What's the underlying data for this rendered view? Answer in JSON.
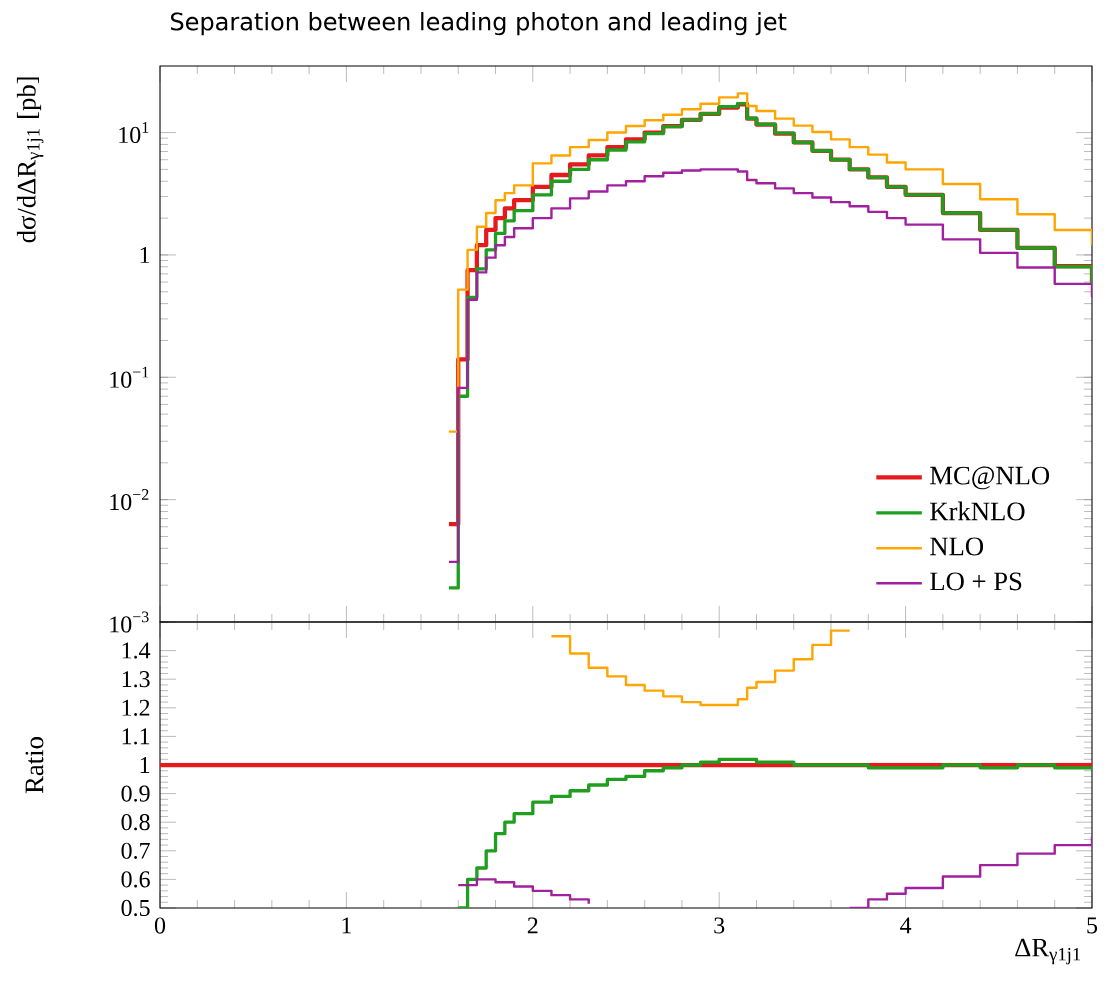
{
  "chart_data": [
    {
      "type": "step",
      "title": "Separation between leading photon and leading jet",
      "ylabel": "dσ/dΔR$_{γ1j1}$ [pb]",
      "log": "y",
      "legend": "bottom right",
      "tick_labels": "y",
      "line_style": "solid",
      "x": [
        1.55,
        1.6,
        1.65,
        1.7,
        1.75,
        1.8,
        1.85,
        1.9,
        2.0,
        2.1,
        2.2,
        2.3,
        2.4,
        2.5,
        2.6,
        2.7,
        2.8,
        2.9,
        3.0,
        3.1,
        3.15,
        3.2,
        3.3,
        3.4,
        3.5,
        3.6,
        3.7,
        3.8,
        3.9,
        4.0,
        4.2,
        4.4,
        4.6,
        4.8,
        5.0
      ],
      "xlim": [
        0,
        5
      ],
      "xticks": [
        0,
        1,
        2,
        3,
        4,
        5
      ],
      "ylim": [
        0.001,
        35
      ],
      "yticks": [
        {
          "value": 0.001,
          "label": "10$^{−3}$"
        },
        {
          "value": 0.01,
          "label": "10$^{−2}$"
        },
        {
          "value": 0.1,
          "label": "10$^{−1}$"
        },
        1,
        {
          "value": 10,
          "label": "10$^{1}$"
        }
      ],
      "series": [
        {
          "name": "MC@NLO",
          "color": "#e41a1c",
          "values": [
            0.0063,
            0.14,
            0.75,
            1.2,
            1.6,
            2.0,
            2.4,
            2.8,
            3.6,
            4.5,
            5.5,
            6.5,
            7.6,
            8.8,
            10,
            11.3,
            12.7,
            14.2,
            16,
            17,
            13,
            11.6,
            9.8,
            8.3,
            7.1,
            6.0,
            5.0,
            4.3,
            3.6,
            3.1,
            2.2,
            1.6,
            1.14,
            0.81,
            0.6
          ]
        },
        {
          "name": "KrkNLO",
          "color": "#1f9e1f",
          "values": [
            0.0019,
            0.07,
            0.45,
            0.77,
            1.1,
            1.5,
            1.9,
            2.3,
            3.1,
            4.0,
            5.0,
            6.0,
            7.2,
            8.4,
            9.8,
            11.2,
            12.7,
            14.3,
            16.3,
            17.3,
            13.1,
            11.7,
            9.9,
            8.3,
            7.1,
            6.0,
            5.0,
            4.3,
            3.6,
            3.1,
            2.2,
            1.6,
            1.14,
            0.8,
            0.59
          ]
        },
        {
          "name": "NLO",
          "color": "#ffa500",
          "values": [
            0.036,
            0.52,
            1.1,
            1.7,
            2.2,
            2.8,
            3.2,
            3.7,
            5.6,
            6.5,
            7.6,
            8.7,
            10,
            11.3,
            12.6,
            14,
            15.5,
            17.2,
            19.4,
            20.9,
            16.5,
            15,
            13,
            11.4,
            10.1,
            8.8,
            7.6,
            6.6,
            5.7,
            5.0,
            3.8,
            2.85,
            2.15,
            1.6,
            1.2
          ]
        },
        {
          "name": "LO + PS",
          "color": "#a020a0",
          "values": [
            0.0031,
            0.082,
            0.43,
            0.72,
            0.95,
            1.2,
            1.4,
            1.65,
            2.0,
            2.4,
            2.9,
            3.3,
            3.7,
            4.0,
            4.4,
            4.7,
            4.9,
            5.0,
            5.0,
            4.8,
            4.1,
            3.85,
            3.5,
            3.2,
            2.95,
            2.7,
            2.5,
            2.25,
            2.0,
            1.77,
            1.34,
            1.04,
            0.79,
            0.58,
            0.45
          ]
        }
      ]
    },
    {
      "type": "step",
      "xlabel": "ΔR$_{γ1j1}$",
      "ylabel": "Ratio",
      "line_style": "solid",
      "xlim": [
        0,
        5
      ],
      "xticks": [
        0,
        1,
        2,
        3,
        4,
        5
      ],
      "ylim": [
        0.5,
        1.5
      ],
      "yticks": [
        0.5,
        0.6,
        0.7,
        0.8,
        0.9,
        1,
        1.1,
        1.2,
        1.3,
        1.4
      ],
      "series": [
        {
          "color": "#e41a1c",
          "x": [
            0,
            5
          ],
          "values": [
            1,
            1
          ]
        },
        {
          "color": "#1f9e1f",
          "x": [
            1.6,
            1.65,
            1.7,
            1.75,
            1.8,
            1.85,
            1.9,
            2.0,
            2.1,
            2.2,
            2.3,
            2.4,
            2.5,
            2.6,
            2.7,
            2.8,
            2.9,
            3.0,
            3.1,
            3.2,
            3.3,
            3.4,
            3.6,
            3.8,
            4.0,
            4.2,
            4.4,
            4.6,
            4.8,
            5.0
          ],
          "values": [
            0.5,
            0.6,
            0.64,
            0.7,
            0.76,
            0.8,
            0.83,
            0.87,
            0.89,
            0.91,
            0.93,
            0.95,
            0.96,
            0.98,
            0.99,
            1.0,
            1.01,
            1.02,
            1.02,
            1.01,
            1.01,
            1.0,
            1.0,
            0.99,
            0.99,
            1.0,
            0.99,
            1.0,
            0.99,
            0.99
          ]
        },
        {
          "color": "#ffa500",
          "x": [
            2.1,
            2.2,
            2.3,
            2.4,
            2.5,
            2.6,
            2.7,
            2.8,
            2.9,
            3.0,
            3.1,
            3.15,
            3.2,
            3.3,
            3.4,
            3.5,
            3.6,
            3.7
          ],
          "values": [
            1.45,
            1.39,
            1.34,
            1.31,
            1.28,
            1.26,
            1.24,
            1.22,
            1.21,
            1.21,
            1.23,
            1.27,
            1.29,
            1.33,
            1.37,
            1.42,
            1.47,
            1.47
          ]
        },
        {
          "color": "#a020a0",
          "x": [
            1.6,
            1.65,
            1.7,
            1.8,
            1.9,
            2.0,
            2.1,
            2.2,
            2.3,
            2.4,
            3.7,
            3.8,
            3.9,
            4.0,
            4.2,
            4.4,
            4.6,
            4.8,
            5.0
          ],
          "values": [
            0.58,
            0.58,
            0.6,
            0.59,
            0.575,
            0.56,
            0.545,
            0.53,
            0.515,
            null,
            0.5,
            0.53,
            0.55,
            0.57,
            0.61,
            0.65,
            0.69,
            0.72,
            0.75
          ]
        }
      ]
    }
  ]
}
